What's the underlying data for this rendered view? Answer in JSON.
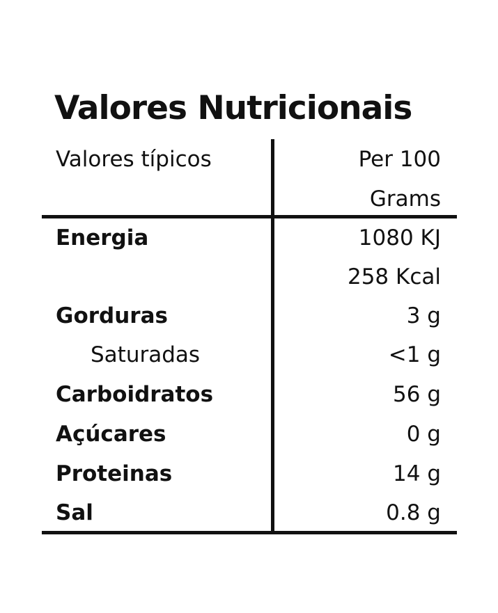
{
  "title": "Valores Nutricionais",
  "header": {
    "label": "Valores típicos",
    "value_line1": "Per 100",
    "value_line2": "Grams"
  },
  "rows": [
    {
      "label": "Energia",
      "value": "1080 KJ"
    },
    {
      "label": "",
      "value": "258 Kcal"
    },
    {
      "label": "Gorduras",
      "value": "3 g"
    },
    {
      "label": "Saturadas",
      "value": "<1 g"
    },
    {
      "label": "Carboidratos",
      "value": "56 g"
    },
    {
      "label": "Açúcares",
      "value": "0 g"
    },
    {
      "label": "Proteinas",
      "value": "14 g"
    },
    {
      "label": "Sal",
      "value": "0.8 g"
    }
  ]
}
